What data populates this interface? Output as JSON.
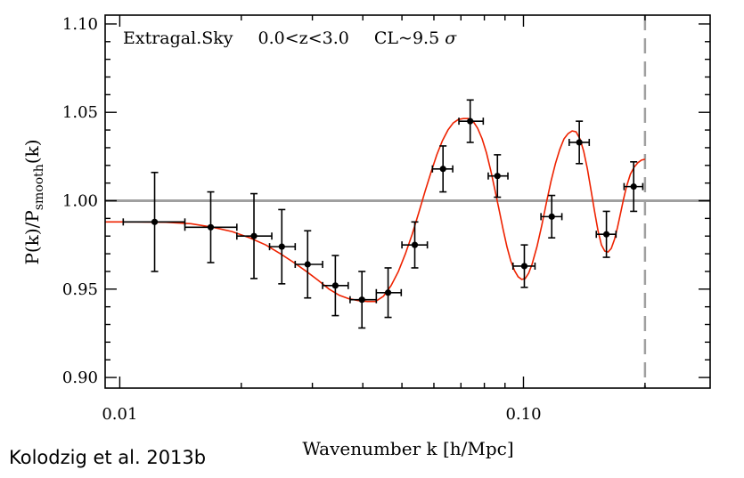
{
  "chart_data": {
    "type": "scatter",
    "title": "",
    "xlabel": "Wavenumber k [h/Mpc]",
    "ylabel_main": "P(k)/P",
    "ylabel_sub": "smooth",
    "ylabel_tail": "(k)",
    "x_scale": "log",
    "xlim": [
      0.0092,
      0.29
    ],
    "ylim": [
      0.894,
      1.105
    ],
    "x_ticks": [
      {
        "value": 0.01,
        "label": "0.01"
      },
      {
        "value": 0.1,
        "label": "0.10"
      }
    ],
    "y_ticks": [
      {
        "value": 0.9,
        "label": "0.90"
      },
      {
        "value": 0.95,
        "label": "0.95"
      },
      {
        "value": 1.0,
        "label": "1.00"
      },
      {
        "value": 1.05,
        "label": "1.05"
      },
      {
        "value": 1.1,
        "label": "1.10"
      }
    ],
    "annotation": {
      "parts": [
        {
          "text": "Extragal.Sky",
          "italic": false
        },
        {
          "text": "0.0<z<3.0",
          "italic": false
        },
        {
          "text": "CL~9.5",
          "italic": false
        },
        {
          "text": "σ",
          "italic": true
        }
      ]
    },
    "reference_line": {
      "y": 1.0,
      "color": "#a0a0a0"
    },
    "cutoff_line": {
      "x": 0.2,
      "color": "#a0a0a0",
      "style": "dashed"
    },
    "series": [
      {
        "kind": "points",
        "color": "#000000",
        "points": [
          {
            "x": 0.0122,
            "y": 0.988,
            "xerr": [
              0.0102,
              0.0145
            ],
            "yerr": 0.028
          },
          {
            "x": 0.0168,
            "y": 0.985,
            "xerr": [
              0.0145,
              0.0195
            ],
            "yerr": 0.02
          },
          {
            "x": 0.0215,
            "y": 0.98,
            "xerr": [
              0.0195,
              0.0238
            ],
            "yerr": 0.024
          },
          {
            "x": 0.0252,
            "y": 0.974,
            "xerr": [
              0.0235,
              0.0272
            ],
            "yerr": 0.021
          },
          {
            "x": 0.0292,
            "y": 0.964,
            "xerr": [
              0.0272,
              0.0318
            ],
            "yerr": 0.019
          },
          {
            "x": 0.0342,
            "y": 0.952,
            "xerr": [
              0.0318,
              0.0368
            ],
            "yerr": 0.017
          },
          {
            "x": 0.0398,
            "y": 0.944,
            "xerr": [
              0.0372,
              0.0432
            ],
            "yerr": 0.016
          },
          {
            "x": 0.0462,
            "y": 0.948,
            "xerr": [
              0.0432,
              0.0498
            ],
            "yerr": 0.014
          },
          {
            "x": 0.0538,
            "y": 0.975,
            "xerr": [
              0.05,
              0.0578
            ],
            "yerr": 0.013
          },
          {
            "x": 0.0632,
            "y": 1.018,
            "xerr": [
              0.0595,
              0.0668
            ],
            "yerr": 0.013
          },
          {
            "x": 0.0738,
            "y": 1.045,
            "xerr": [
              0.0692,
              0.0795
            ],
            "yerr": 0.012
          },
          {
            "x": 0.0862,
            "y": 1.014,
            "xerr": [
              0.0818,
              0.0915
            ],
            "yerr": 0.012
          },
          {
            "x": 0.1005,
            "y": 0.963,
            "xerr": [
              0.0942,
              0.1068
            ],
            "yerr": 0.012
          },
          {
            "x": 0.1175,
            "y": 0.991,
            "xerr": [
              0.1105,
              0.1245
            ],
            "yerr": 0.012
          },
          {
            "x": 0.1375,
            "y": 1.033,
            "xerr": [
              0.1298,
              0.1455
            ],
            "yerr": 0.012
          },
          {
            "x": 0.1605,
            "y": 0.981,
            "xerr": [
              0.1515,
              0.1695
            ],
            "yerr": 0.013
          },
          {
            "x": 0.1875,
            "y": 1.008,
            "xerr": [
              0.1775,
              0.1975
            ],
            "yerr": 0.014
          }
        ]
      },
      {
        "kind": "curve",
        "color": "#ee2200",
        "points": [
          [
            0.0092,
            0.988
          ],
          [
            0.011,
            0.988
          ],
          [
            0.013,
            0.9878
          ],
          [
            0.015,
            0.987
          ],
          [
            0.017,
            0.985
          ],
          [
            0.019,
            0.9825
          ],
          [
            0.021,
            0.979
          ],
          [
            0.023,
            0.975
          ],
          [
            0.025,
            0.97
          ],
          [
            0.027,
            0.965
          ],
          [
            0.029,
            0.96
          ],
          [
            0.031,
            0.955
          ],
          [
            0.033,
            0.95
          ],
          [
            0.035,
            0.9465
          ],
          [
            0.037,
            0.9445
          ],
          [
            0.039,
            0.9435
          ],
          [
            0.041,
            0.943
          ],
          [
            0.043,
            0.943
          ],
          [
            0.045,
            0.946
          ],
          [
            0.047,
            0.952
          ],
          [
            0.049,
            0.96
          ],
          [
            0.051,
            0.97
          ],
          [
            0.053,
            0.981
          ],
          [
            0.055,
            0.993
          ],
          [
            0.057,
            1.005
          ],
          [
            0.059,
            1.016
          ],
          [
            0.061,
            1.026
          ],
          [
            0.063,
            1.034
          ],
          [
            0.065,
            1.04
          ],
          [
            0.067,
            1.044
          ],
          [
            0.069,
            1.046
          ],
          [
            0.071,
            1.0465
          ],
          [
            0.073,
            1.0465
          ],
          [
            0.075,
            1.045
          ],
          [
            0.077,
            1.041
          ],
          [
            0.079,
            1.035
          ],
          [
            0.081,
            1.027
          ],
          [
            0.083,
            1.017
          ],
          [
            0.085,
            1.006
          ],
          [
            0.087,
            0.995
          ],
          [
            0.089,
            0.984
          ],
          [
            0.091,
            0.974
          ],
          [
            0.093,
            0.966
          ],
          [
            0.095,
            0.9605
          ],
          [
            0.097,
            0.957
          ],
          [
            0.099,
            0.9555
          ],
          [
            0.101,
            0.956
          ],
          [
            0.103,
            0.959
          ],
          [
            0.105,
            0.964
          ],
          [
            0.108,
            0.974
          ],
          [
            0.111,
            0.986
          ],
          [
            0.114,
            0.999
          ],
          [
            0.117,
            1.011
          ],
          [
            0.12,
            1.021
          ],
          [
            0.123,
            1.029
          ],
          [
            0.126,
            1.035
          ],
          [
            0.129,
            1.038
          ],
          [
            0.132,
            1.0395
          ],
          [
            0.135,
            1.039
          ],
          [
            0.138,
            1.035
          ],
          [
            0.141,
            1.028
          ],
          [
            0.144,
            1.018
          ],
          [
            0.147,
            1.006
          ],
          [
            0.15,
            0.994
          ],
          [
            0.153,
            0.983
          ],
          [
            0.156,
            0.975
          ],
          [
            0.159,
            0.9715
          ],
          [
            0.162,
            0.971
          ],
          [
            0.165,
            0.973
          ],
          [
            0.168,
            0.978
          ],
          [
            0.171,
            0.985
          ],
          [
            0.174,
            0.993
          ],
          [
            0.177,
            1.001
          ],
          [
            0.18,
            1.008
          ],
          [
            0.184,
            1.015
          ],
          [
            0.188,
            1.019
          ],
          [
            0.192,
            1.0215
          ],
          [
            0.196,
            1.023
          ],
          [
            0.2,
            1.0235
          ]
        ]
      }
    ]
  },
  "credit": "Kolodzig et al. 2013b"
}
